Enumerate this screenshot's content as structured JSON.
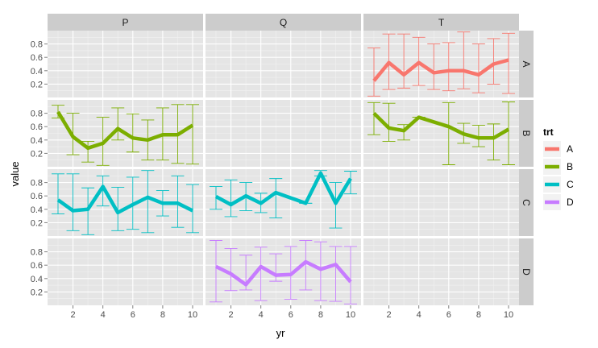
{
  "chart_data": {
    "type": "line",
    "title": "",
    "xlabel": "yr",
    "ylabel": "value",
    "columns": [
      "P",
      "Q",
      "T"
    ],
    "rows": [
      "A",
      "B",
      "C",
      "D"
    ],
    "xlim": [
      0.3,
      10.7
    ],
    "ylim": [
      0.0,
      1.0
    ],
    "x_ticks": [
      2,
      4,
      6,
      8,
      10
    ],
    "y_ticks": [
      0.2,
      0.4,
      0.6,
      0.8
    ],
    "y_tick_labels": [
      "0.2",
      "0.4",
      "0.6",
      "0.8"
    ],
    "legend": {
      "title": "trt",
      "position": "right",
      "entries": [
        {
          "label": "A",
          "color": "#F8766D"
        },
        {
          "label": "B",
          "color": "#7CAE00"
        },
        {
          "label": "C",
          "color": "#00BFC4"
        },
        {
          "label": "D",
          "color": "#C77CFF"
        }
      ]
    },
    "series": [
      {
        "name": "A",
        "column": "T",
        "row": "A",
        "color": "#F8766D",
        "x": [
          1,
          2,
          3,
          4,
          5,
          6,
          7,
          8,
          9,
          10
        ],
        "values": [
          0.25,
          0.52,
          0.34,
          0.52,
          0.37,
          0.4,
          0.4,
          0.34,
          0.5,
          0.56
        ],
        "err_low": [
          0.02,
          0.12,
          0.14,
          0.18,
          0.12,
          0.1,
          0.13,
          0.07,
          0.2,
          0.06
        ],
        "err_high": [
          0.74,
          0.95,
          0.95,
          0.9,
          0.8,
          0.82,
          0.98,
          0.8,
          0.88,
          0.96
        ]
      },
      {
        "name": "B",
        "column": "P",
        "row": "B",
        "color": "#7CAE00",
        "x": [
          1,
          2,
          3,
          4,
          5,
          6,
          7,
          8,
          9,
          10
        ],
        "values": [
          0.82,
          0.45,
          0.28,
          0.35,
          0.57,
          0.43,
          0.4,
          0.48,
          0.48,
          0.62
        ],
        "err_low": [
          0.73,
          0.18,
          0.07,
          0.02,
          0.4,
          0.22,
          0.1,
          0.1,
          0.05,
          0.04
        ],
        "err_high": [
          0.92,
          0.8,
          0.38,
          0.74,
          0.88,
          0.79,
          0.7,
          0.88,
          0.93,
          0.93
        ]
      },
      {
        "name": "B",
        "column": "T",
        "row": "B",
        "color": "#7CAE00",
        "x": [
          1,
          2,
          3,
          4,
          6,
          7,
          8,
          9,
          10
        ],
        "values": [
          0.8,
          0.58,
          0.54,
          0.74,
          0.6,
          0.49,
          0.43,
          0.43,
          0.56
        ],
        "err_low": [
          0.48,
          0.38,
          0.4,
          0.74,
          0.03,
          0.35,
          0.3,
          0.1,
          0.03
        ],
        "err_high": [
          0.96,
          0.95,
          0.63,
          0.74,
          0.96,
          0.65,
          0.62,
          0.64,
          0.97
        ]
      },
      {
        "name": "C",
        "column": "P",
        "row": "C",
        "color": "#00BFC4",
        "x": [
          1,
          2,
          3,
          4,
          5,
          6,
          7,
          8,
          9,
          10
        ],
        "values": [
          0.54,
          0.38,
          0.4,
          0.74,
          0.35,
          0.47,
          0.58,
          0.49,
          0.49,
          0.38
        ],
        "err_low": [
          0.33,
          0.08,
          0.02,
          0.45,
          0.08,
          0.1,
          0.05,
          0.3,
          0.13,
          0.05
        ],
        "err_high": [
          0.93,
          0.93,
          0.72,
          0.9,
          0.73,
          0.88,
          0.98,
          0.68,
          0.9,
          0.77
        ]
      },
      {
        "name": "C",
        "column": "Q",
        "row": "C",
        "color": "#00BFC4",
        "x": [
          1,
          2,
          3,
          4,
          5,
          7,
          8,
          9,
          10
        ],
        "values": [
          0.59,
          0.47,
          0.6,
          0.49,
          0.65,
          0.49,
          0.94,
          0.49,
          0.86
        ],
        "err_low": [
          0.4,
          0.29,
          0.38,
          0.35,
          0.27,
          0.49,
          0.9,
          0.12,
          0.63
        ],
        "err_high": [
          0.74,
          0.84,
          0.8,
          0.64,
          0.86,
          0.49,
          0.98,
          0.8,
          0.97
        ]
      },
      {
        "name": "D",
        "column": "Q",
        "row": "D",
        "color": "#C77CFF",
        "x": [
          1,
          2,
          3,
          4,
          5,
          6,
          7,
          8,
          9,
          10
        ],
        "values": [
          0.58,
          0.47,
          0.31,
          0.58,
          0.45,
          0.46,
          0.65,
          0.54,
          0.61,
          0.35
        ],
        "err_low": [
          0.05,
          0.22,
          0.23,
          0.07,
          0.36,
          0.09,
          0.23,
          0.07,
          0.06,
          0.02
        ],
        "err_high": [
          0.97,
          0.85,
          0.75,
          0.87,
          0.77,
          0.88,
          0.97,
          0.95,
          0.88,
          0.88
        ]
      }
    ]
  }
}
